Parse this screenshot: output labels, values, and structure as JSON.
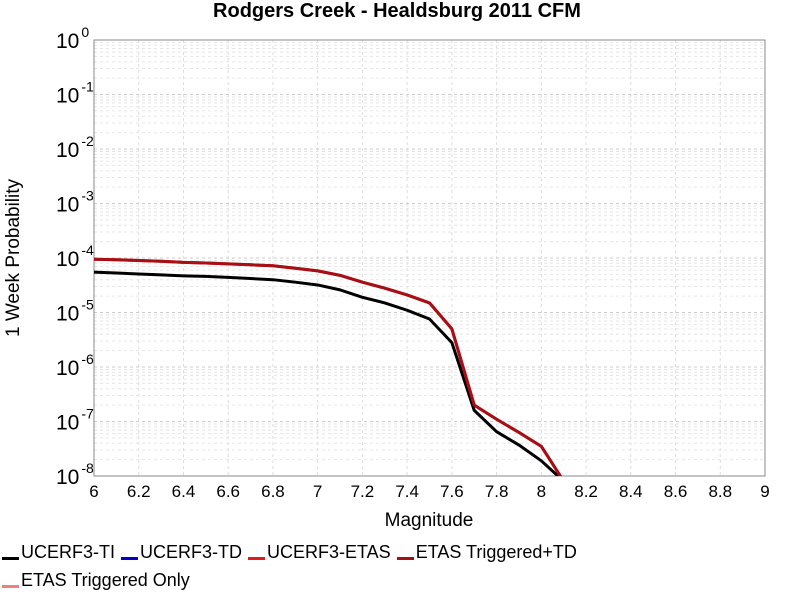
{
  "chart_data": {
    "type": "line",
    "title": "Rodgers Creek - Healdsburg 2011 CFM",
    "xlabel": "Magnitude",
    "ylabel": "1 Week Probability",
    "xlim": [
      6,
      9
    ],
    "ylim": [
      1e-08,
      1
    ],
    "y_scale": "log",
    "grid": true,
    "legend_position": "bottom",
    "x_ticks": [
      "6",
      "6.2",
      "6.4",
      "6.6",
      "6.8",
      "7",
      "7.2",
      "7.4",
      "7.6",
      "7.8",
      "8",
      "8.2",
      "8.4",
      "8.6",
      "8.8",
      "9"
    ],
    "y_ticks": [
      {
        "base": "10",
        "exp": "-8",
        "value": 1e-08
      },
      {
        "base": "10",
        "exp": "-7",
        "value": 1e-07
      },
      {
        "base": "10",
        "exp": "-6",
        "value": 1e-06
      },
      {
        "base": "10",
        "exp": "-5",
        "value": 1e-05
      },
      {
        "base": "10",
        "exp": "-4",
        "value": 0.0001
      },
      {
        "base": "10",
        "exp": "-3",
        "value": 0.001
      },
      {
        "base": "10",
        "exp": "-2",
        "value": 0.01
      },
      {
        "base": "10",
        "exp": "-1",
        "value": 0.1
      },
      {
        "base": "10",
        "exp": "0",
        "value": 1
      }
    ],
    "series": [
      {
        "name": "UCERF3-TI",
        "color": "#000000",
        "x": [
          6.0,
          6.1,
          6.2,
          6.3,
          6.4,
          6.5,
          6.6,
          6.7,
          6.8,
          6.9,
          7.0,
          7.1,
          7.2,
          7.3,
          7.4,
          7.5,
          7.6,
          7.7,
          7.8,
          7.9,
          8.0,
          8.1
        ],
        "y": [
          5.5e-05,
          5.3e-05,
          5.1e-05,
          4.9e-05,
          4.7e-05,
          4.6e-05,
          4.4e-05,
          4.2e-05,
          4e-05,
          3.6e-05,
          3.2e-05,
          2.6e-05,
          1.9e-05,
          1.5e-05,
          1.1e-05,
          7.6e-06,
          2.8e-06,
          1.6e-07,
          6.5e-08,
          3.7e-08,
          1.9e-08,
          8e-09
        ]
      },
      {
        "name": "UCERF3-TD",
        "color": "#0000cc",
        "x": [],
        "y": []
      },
      {
        "name": "UCERF3-ETAS",
        "color": "#e11b1b",
        "x": [
          6.0,
          6.1,
          6.2,
          6.3,
          6.4,
          6.5,
          6.6,
          6.7,
          6.8,
          6.9,
          7.0,
          7.1,
          7.2,
          7.3,
          7.4,
          7.5,
          7.6,
          7.7,
          7.8,
          7.9,
          8.0,
          8.1
        ],
        "y": [
          9.5e-05,
          9.3e-05,
          9e-05,
          8.7e-05,
          8.3e-05,
          8.1e-05,
          7.8e-05,
          7.5e-05,
          7.2e-05,
          6.5e-05,
          5.8e-05,
          4.8e-05,
          3.6e-05,
          2.8e-05,
          2.1e-05,
          1.5e-05,
          5e-06,
          2e-07,
          1.1e-07,
          6.3e-08,
          3.5e-08,
          8e-09
        ]
      },
      {
        "name": "ETAS Triggered+TD",
        "color": "#a50f15",
        "x": [
          6.0,
          6.1,
          6.2,
          6.3,
          6.4,
          6.5,
          6.6,
          6.7,
          6.8,
          6.9,
          7.0,
          7.1,
          7.2,
          7.3,
          7.4,
          7.5,
          7.6,
          7.7,
          7.8,
          7.9,
          8.0,
          8.1
        ],
        "y": [
          9.5e-05,
          9.3e-05,
          9e-05,
          8.7e-05,
          8.3e-05,
          8.1e-05,
          7.8e-05,
          7.5e-05,
          7.2e-05,
          6.5e-05,
          5.8e-05,
          4.8e-05,
          3.6e-05,
          2.8e-05,
          2.1e-05,
          1.5e-05,
          5e-06,
          2e-07,
          1.1e-07,
          6.3e-08,
          3.5e-08,
          8e-09
        ]
      },
      {
        "name": "ETAS Triggered Only",
        "color": "#f08080",
        "x": [],
        "y": []
      }
    ]
  }
}
